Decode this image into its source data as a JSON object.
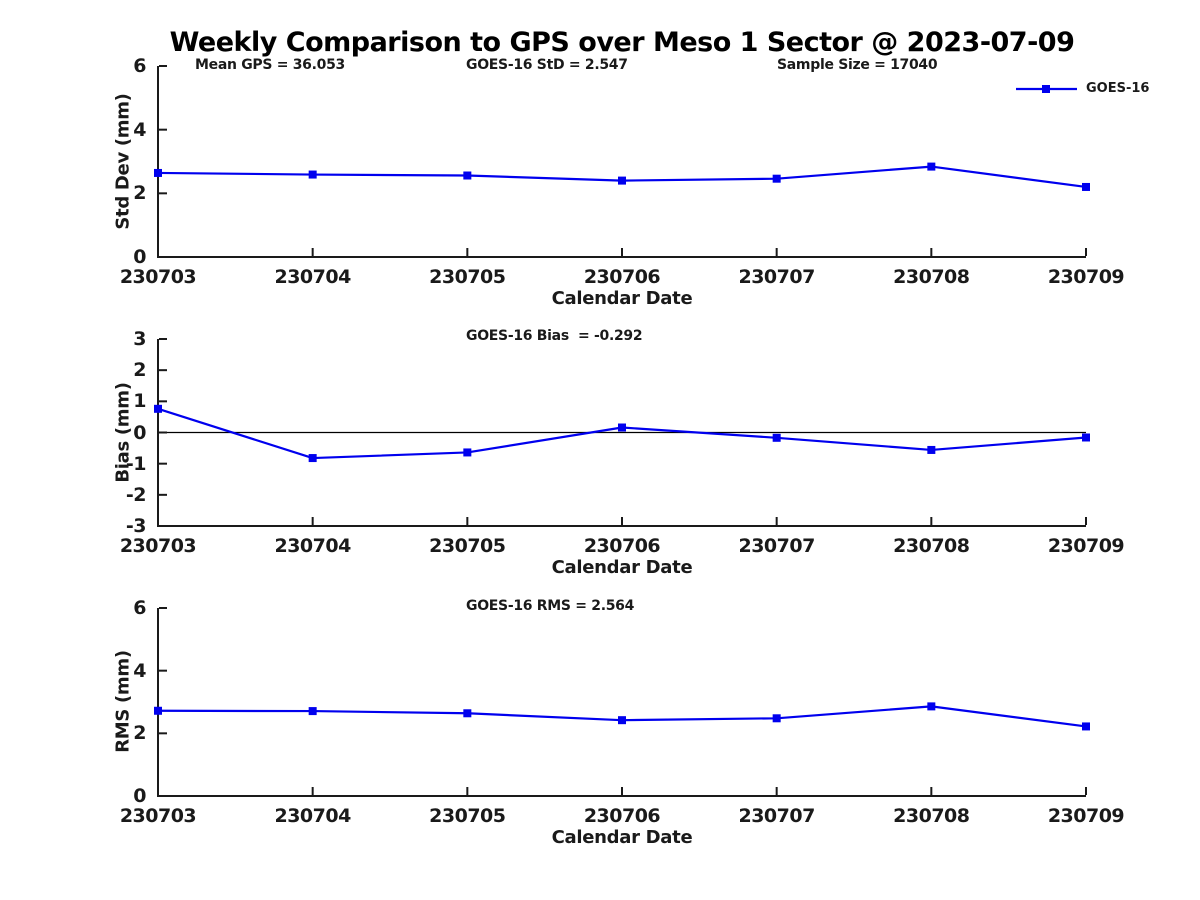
{
  "title": "Weekly Comparison to GPS over Meso 1 Sector @ 2023-07-09",
  "x_axis_label": "Calendar Date",
  "categories": [
    "230703",
    "230704",
    "230705",
    "230706",
    "230707",
    "230708",
    "230709"
  ],
  "colors": {
    "line": "#0000EE",
    "text": "#1a1a1a",
    "axis": "#1a1a1a",
    "zero_line": "#000000"
  },
  "legend": {
    "label": "GOES-16",
    "position": "top-right",
    "marker": "filled-square"
  },
  "chart_data": [
    {
      "type": "line",
      "name": "std-dev",
      "ylabel": "Std Dev (mm)",
      "xlabel": "Calendar Date",
      "ylim": [
        0,
        6
      ],
      "yticks": [
        0,
        2,
        4,
        6
      ],
      "grid": false,
      "zero_line": false,
      "categories": [
        "230703",
        "230704",
        "230705",
        "230706",
        "230707",
        "230708",
        "230709"
      ],
      "series": [
        {
          "name": "GOES-16",
          "values": [
            2.64,
            2.59,
            2.56,
            2.4,
            2.46,
            2.84,
            2.2
          ]
        }
      ],
      "annotations": [
        {
          "text": "Mean GPS = 36.053",
          "x": 195
        },
        {
          "text": "GOES-16 StD = 2.547",
          "x": 466
        },
        {
          "text": "Sample Size = 17040",
          "x": 777
        }
      ],
      "show_legend": true
    },
    {
      "type": "line",
      "name": "bias",
      "ylabel": "Bias (mm)",
      "xlabel": "Calendar Date",
      "ylim": [
        -3,
        3
      ],
      "yticks": [
        3,
        2,
        1,
        0,
        -1,
        -2,
        -3
      ],
      "grid": false,
      "zero_line": true,
      "categories": [
        "230703",
        "230704",
        "230705",
        "230706",
        "230707",
        "230708",
        "230709"
      ],
      "series": [
        {
          "name": "GOES-16",
          "values": [
            0.76,
            -0.82,
            -0.64,
            0.16,
            -0.17,
            -0.56,
            -0.16
          ]
        }
      ],
      "annotations": [
        {
          "text": "GOES-16 Bias  = -0.292",
          "x": 466
        }
      ],
      "show_legend": false
    },
    {
      "type": "line",
      "name": "rms",
      "ylabel": "RMS (mm)",
      "xlabel": "Calendar Date",
      "ylim": [
        0,
        6
      ],
      "yticks": [
        0,
        2,
        4,
        6
      ],
      "grid": false,
      "zero_line": false,
      "categories": [
        "230703",
        "230704",
        "230705",
        "230706",
        "230707",
        "230708",
        "230709"
      ],
      "series": [
        {
          "name": "GOES-16",
          "values": [
            2.72,
            2.71,
            2.64,
            2.42,
            2.48,
            2.86,
            2.22
          ]
        }
      ],
      "annotations": [
        {
          "text": "GOES-16 RMS = 2.564",
          "x": 466
        }
      ],
      "show_legend": false
    }
  ]
}
